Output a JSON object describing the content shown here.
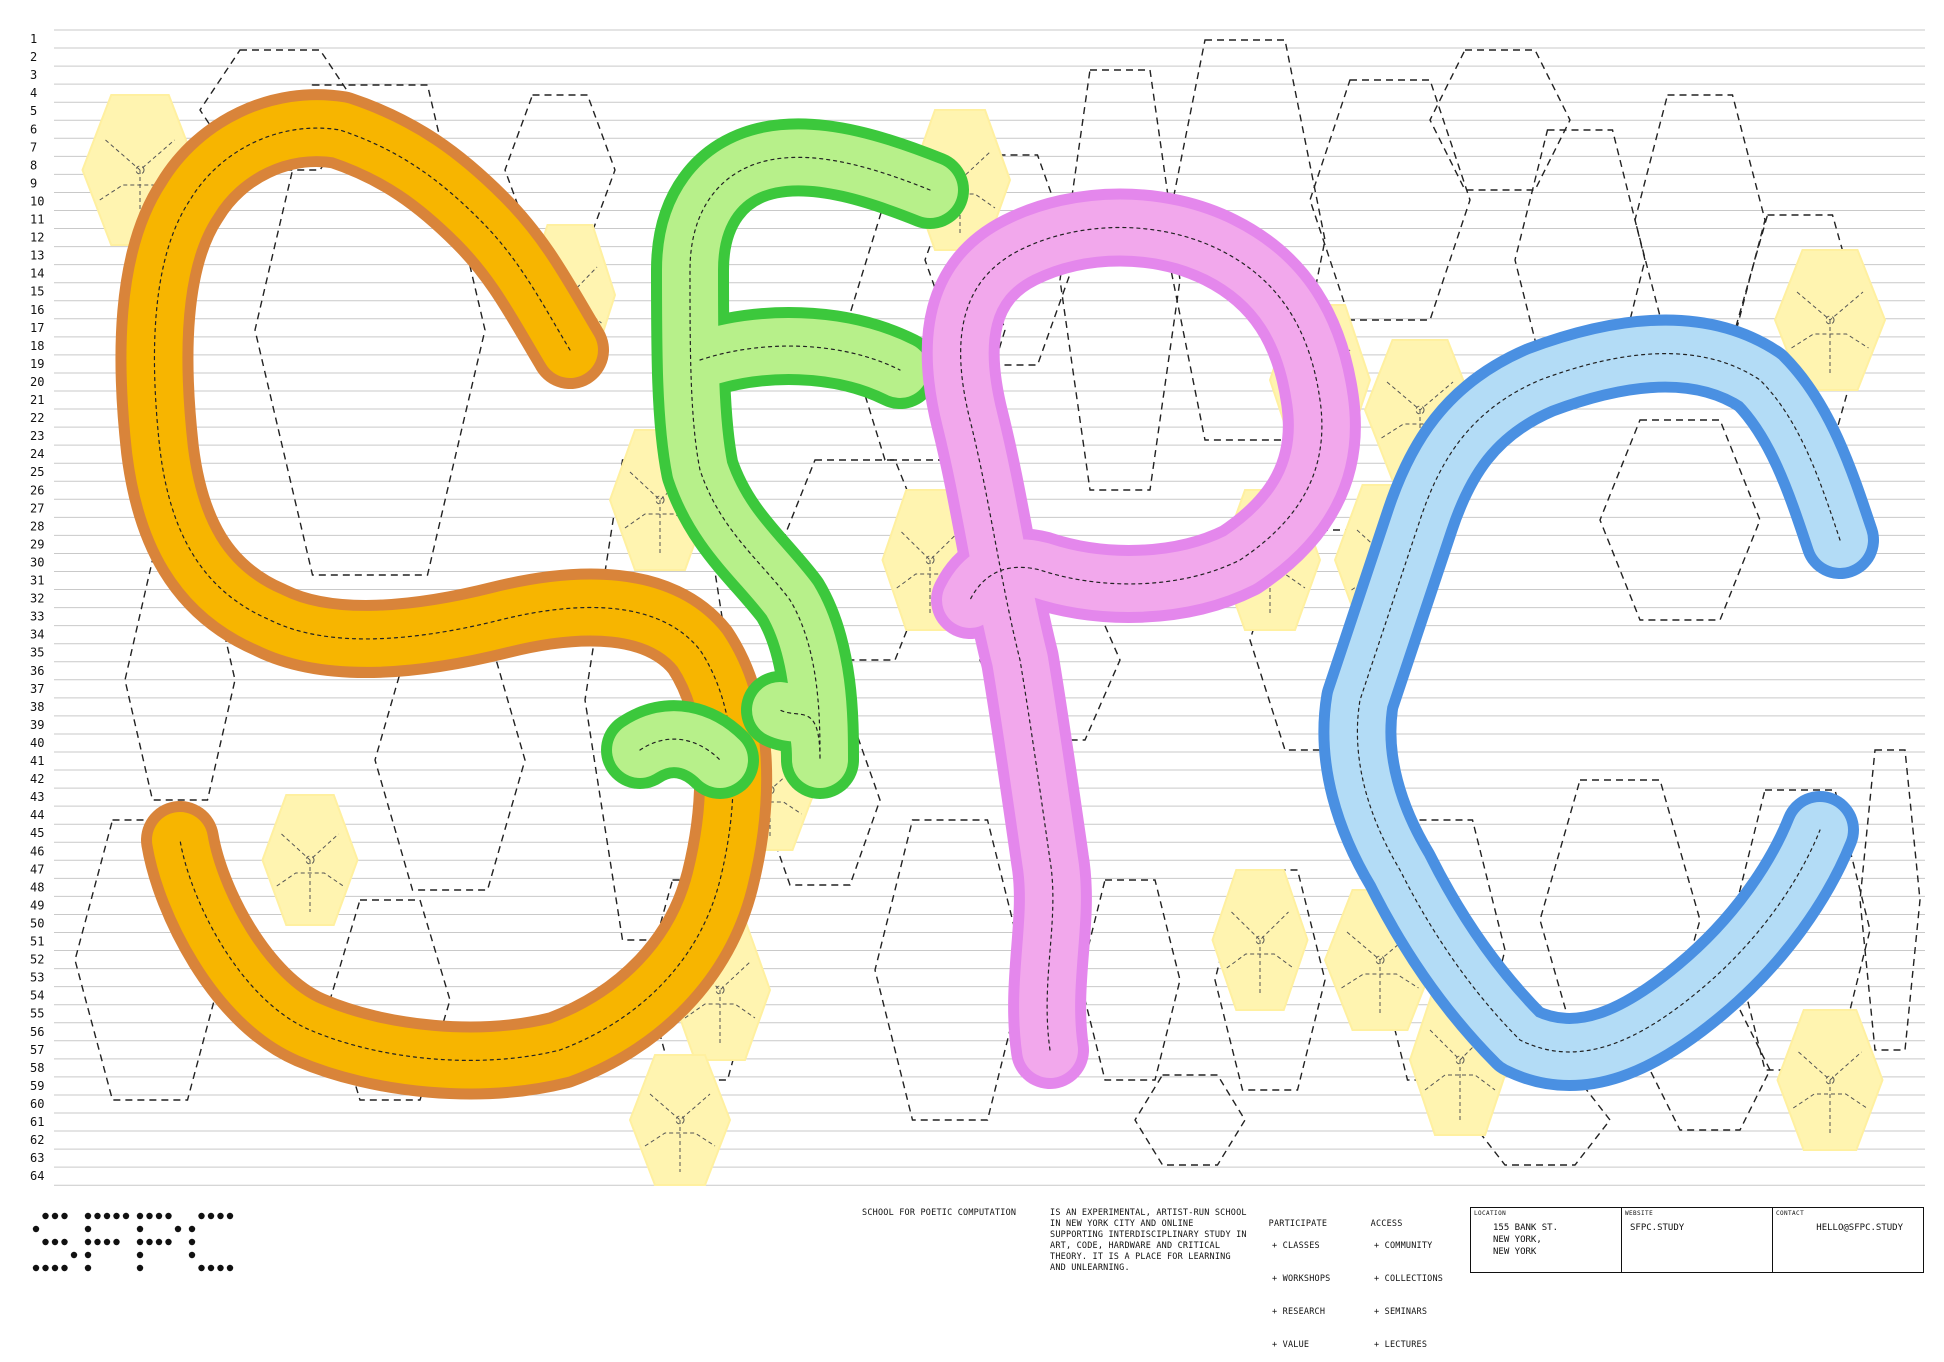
{
  "brand": {
    "logo_text": "SFPC",
    "school_name": "SCHOOL FOR POETIC COMPUTATION",
    "description": "IS AN EXPERIMENTAL, ARTIST-RUN SCHOOL IN NEW YORK CITY AND ONLINE SUPPORTING INTERDISCIPLINARY STUDY IN ART, CODE, HARDWARE AND CRITICAL THEORY. IT IS A PLACE FOR LEARNING AND UNLEARNING."
  },
  "participate": {
    "heading": "PARTICIPATE",
    "items": [
      "+ CLASSES",
      "+ WORKSHOPS",
      "+ RESEARCH",
      "+ VALUE"
    ]
  },
  "access": {
    "heading": "ACCESS",
    "items": [
      "+ COMMUNITY",
      "+ COLLECTIONS",
      "+ SEMINARS",
      "+ LECTURES"
    ]
  },
  "info": {
    "location_label": "LOCATION",
    "location_value": "155 BANK ST.\nNEW YORK,\nNEW YORK",
    "website_label": "WEBSITE",
    "website_value": "SFPC.STUDY",
    "contact_label": "CONTACT",
    "contact_value": "HELLO@SFPC.STUDY"
  },
  "row_count": 64,
  "colors": {
    "orange_outer": "#d9843a",
    "orange_inner": "#f7b500",
    "green_outer": "#3cc83c",
    "green_inner": "#b7f08a",
    "pink_outer": "#e487ec",
    "pink_inner": "#f2a8ec",
    "blue_outer": "#4a90e2",
    "blue_inner": "#b3dcf6",
    "hex_yellow": "#fff4b0"
  }
}
